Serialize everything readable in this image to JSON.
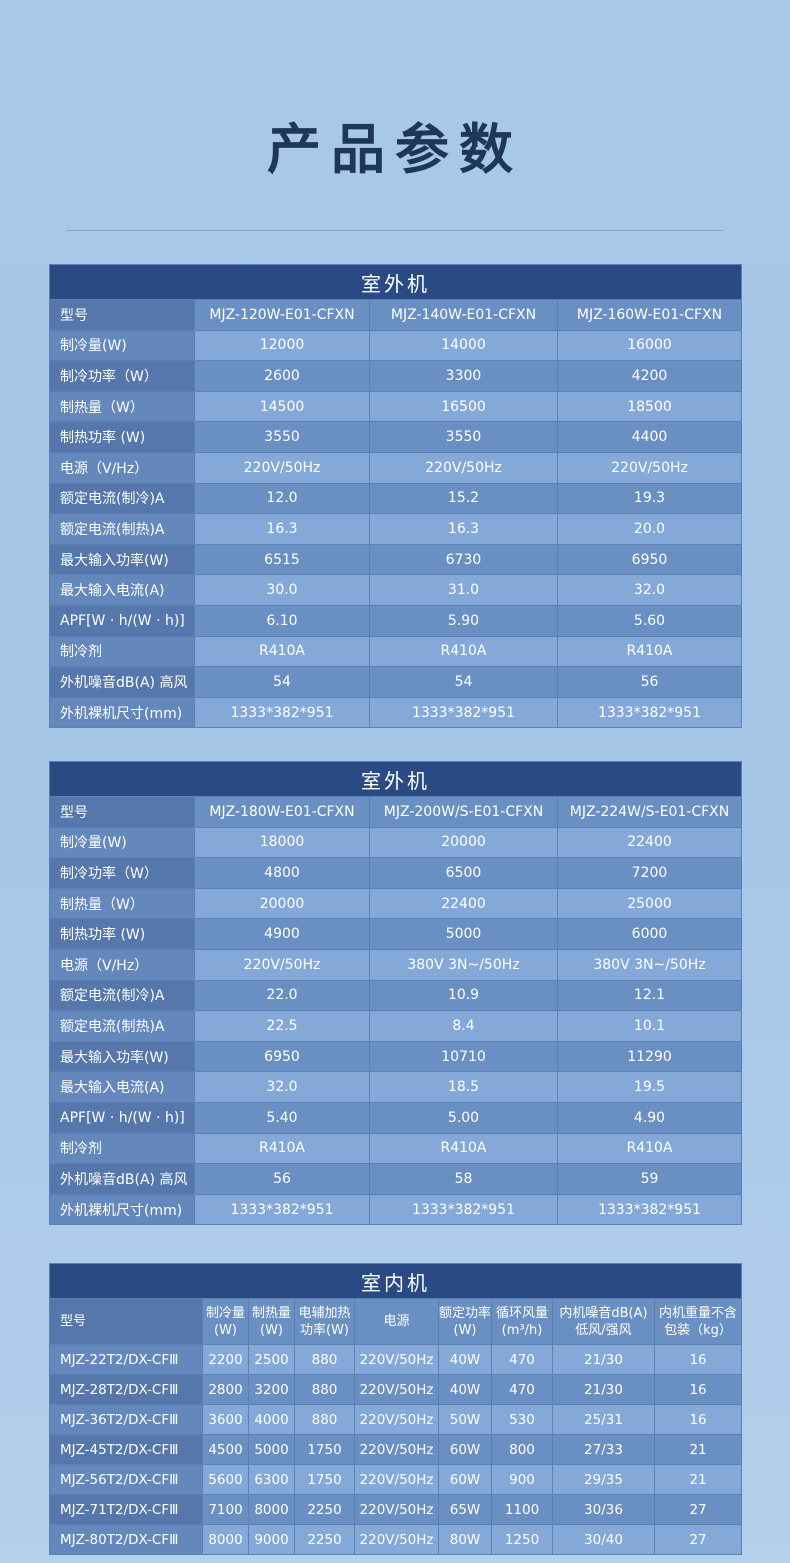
{
  "title": "产品参数",
  "outdoor_tables": [
    {
      "caption": "室外机",
      "rows": [
        [
          "型号",
          "MJZ-120W-E01-CFXN",
          "MJZ-140W-E01-CFXN",
          "MJZ-160W-E01-CFXN"
        ],
        [
          "制冷量(W)",
          "12000",
          "14000",
          "16000"
        ],
        [
          "制冷功率（W）",
          "2600",
          "3300",
          "4200"
        ],
        [
          "制热量（W）",
          "14500",
          "16500",
          "18500"
        ],
        [
          "制热功率 (W)",
          "3550",
          "3550",
          "4400"
        ],
        [
          "电源（V/Hz）",
          "220V/50Hz",
          "220V/50Hz",
          "220V/50Hz"
        ],
        [
          "额定电流(制冷)A",
          "12.0",
          "15.2",
          "19.3"
        ],
        [
          "额定电流(制热)A",
          "16.3",
          "16.3",
          "20.0"
        ],
        [
          "最大输入功率(W)",
          "6515",
          "6730",
          "6950"
        ],
        [
          "最大输入电流(A)",
          "30.0",
          "31.0",
          "32.0"
        ],
        [
          "APF[W · h/(W · h)]",
          "6.10",
          "5.90",
          "5.60"
        ],
        [
          "制冷剂",
          "R410A",
          "R410A",
          "R410A"
        ],
        [
          "外机噪音dB(A) 高风",
          "54",
          "54",
          "56"
        ],
        [
          "外机裸机尺寸(mm)",
          "1333*382*951",
          "1333*382*951",
          "1333*382*951"
        ]
      ]
    },
    {
      "caption": "室外机",
      "rows": [
        [
          "型号",
          "MJZ-180W-E01-CFXN",
          "MJZ-200W/S-E01-CFXN",
          "MJZ-224W/S-E01-CFXN"
        ],
        [
          "制冷量(W)",
          "18000",
          "20000",
          "22400"
        ],
        [
          "制冷功率（W）",
          "4800",
          "6500",
          "7200"
        ],
        [
          "制热量（W）",
          "20000",
          "22400",
          "25000"
        ],
        [
          "制热功率 (W)",
          "4900",
          "5000",
          "6000"
        ],
        [
          "电源（V/Hz）",
          "220V/50Hz",
          "380V 3N~/50Hz",
          "380V 3N~/50Hz"
        ],
        [
          "额定电流(制冷)A",
          "22.0",
          "10.9",
          "12.1"
        ],
        [
          "额定电流(制热)A",
          "22.5",
          "8.4",
          "10.1"
        ],
        [
          "最大输入功率(W)",
          "6950",
          "10710",
          "11290"
        ],
        [
          "最大输入电流(A)",
          "32.0",
          "18.5",
          "19.5"
        ],
        [
          "APF[W · h/(W · h)]",
          "5.40",
          "5.00",
          "4.90"
        ],
        [
          "制冷剂",
          "R410A",
          "R410A",
          "R410A"
        ],
        [
          "外机噪音dB(A) 高风",
          "56",
          "58",
          "59"
        ],
        [
          "外机裸机尺寸(mm)",
          "1333*382*951",
          "1333*382*951",
          "1333*382*951"
        ]
      ]
    }
  ],
  "indoor_table": {
    "caption": "室内机",
    "headers": [
      "型号",
      "制冷量(W)",
      "制热量(W)",
      "电辅加热功率(W)",
      "电源",
      "额定功率(W)",
      "循环风量(m³/h)",
      "内机噪音dB(A)低风/强风",
      "内机重量不含包装（kg）"
    ],
    "rows": [
      [
        "MJZ-22T2/DX-CFⅢ",
        "2200",
        "2500",
        "880",
        "220V/50Hz",
        "40W",
        "470",
        "21/30",
        "16"
      ],
      [
        "MJZ-28T2/DX-CFⅢ",
        "2800",
        "3200",
        "880",
        "220V/50Hz",
        "40W",
        "470",
        "21/30",
        "16"
      ],
      [
        "MJZ-36T2/DX-CFⅢ",
        "3600",
        "4000",
        "880",
        "220V/50Hz",
        "50W",
        "530",
        "25/31",
        "16"
      ],
      [
        "MJZ-45T2/DX-CFⅢ",
        "4500",
        "5000",
        "1750",
        "220V/50Hz",
        "60W",
        "800",
        "27/33",
        "21"
      ],
      [
        "MJZ-56T2/DX-CFⅢ",
        "5600",
        "6300",
        "1750",
        "220V/50Hz",
        "60W",
        "900",
        "29/35",
        "21"
      ],
      [
        "MJZ-71T2/DX-CFⅢ",
        "7100",
        "8000",
        "2250",
        "220V/50Hz",
        "65W",
        "1100",
        "30/36",
        "27"
      ],
      [
        "MJZ-80T2/DX-CFⅢ",
        "8000",
        "9000",
        "2250",
        "220V/50Hz",
        "80W",
        "1250",
        "30/40",
        "27"
      ]
    ]
  }
}
